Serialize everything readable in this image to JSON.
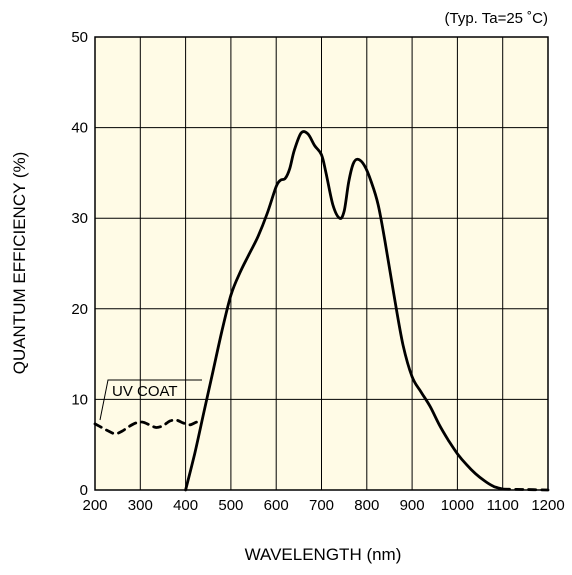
{
  "chart_data": {
    "type": "line",
    "condition_note": "(Typ. Ta=25 ˚C)",
    "xlabel": "WAVELENGTH (nm)",
    "ylabel": "QUANTUM EFFICIENCY (%)",
    "xlim": [
      200,
      1200
    ],
    "ylim": [
      0,
      50
    ],
    "xticks": [
      200,
      300,
      400,
      500,
      600,
      700,
      800,
      900,
      1000,
      1100,
      1200
    ],
    "yticks": [
      0,
      10,
      20,
      30,
      40,
      50
    ],
    "grid": true,
    "plot_background": "#fffbe6",
    "annotation": "UV COAT",
    "series": [
      {
        "name": "",
        "style": "solid",
        "color": "#000000",
        "points": [
          [
            400,
            0
          ],
          [
            420,
            4
          ],
          [
            440,
            8.5
          ],
          [
            460,
            13
          ],
          [
            480,
            17.5
          ],
          [
            500,
            21.5
          ],
          [
            520,
            24
          ],
          [
            540,
            26
          ],
          [
            560,
            28
          ],
          [
            580,
            30.5
          ],
          [
            600,
            33.5
          ],
          [
            610,
            34.2
          ],
          [
            620,
            34.4
          ],
          [
            630,
            35.5
          ],
          [
            640,
            37.5
          ],
          [
            655,
            39.4
          ],
          [
            670,
            39.3
          ],
          [
            685,
            38
          ],
          [
            700,
            37
          ],
          [
            710,
            35
          ],
          [
            725,
            31.5
          ],
          [
            740,
            30
          ],
          [
            750,
            30.8
          ],
          [
            760,
            34
          ],
          [
            770,
            36
          ],
          [
            780,
            36.5
          ],
          [
            795,
            35.8
          ],
          [
            810,
            34
          ],
          [
            825,
            31.5
          ],
          [
            840,
            27.5
          ],
          [
            860,
            21.5
          ],
          [
            880,
            16
          ],
          [
            900,
            12.5
          ],
          [
            920,
            10.8
          ],
          [
            940,
            9.2
          ],
          [
            960,
            7.2
          ],
          [
            980,
            5.5
          ],
          [
            1000,
            4
          ],
          [
            1020,
            2.8
          ],
          [
            1040,
            1.8
          ],
          [
            1060,
            1
          ],
          [
            1080,
            0.4
          ],
          [
            1100,
            0.1
          ]
        ]
      },
      {
        "name": "UV COAT",
        "style": "dashed",
        "color": "#000000",
        "points": [
          [
            200,
            7.3
          ],
          [
            215,
            6.9
          ],
          [
            230,
            6.5
          ],
          [
            245,
            6.2
          ],
          [
            260,
            6.5
          ],
          [
            275,
            7
          ],
          [
            290,
            7.4
          ],
          [
            305,
            7.5
          ],
          [
            320,
            7.2
          ],
          [
            335,
            6.9
          ],
          [
            350,
            7.1
          ],
          [
            365,
            7.6
          ],
          [
            380,
            7.7
          ],
          [
            395,
            7.4
          ],
          [
            410,
            7.2
          ],
          [
            425,
            7.5
          ],
          [
            435,
            7.3
          ]
        ]
      },
      {
        "name": "",
        "style": "dashed",
        "color": "#000000",
        "points": [
          [
            1100,
            0.1
          ],
          [
            1150,
            0.05
          ],
          [
            1200,
            0
          ]
        ]
      }
    ]
  }
}
